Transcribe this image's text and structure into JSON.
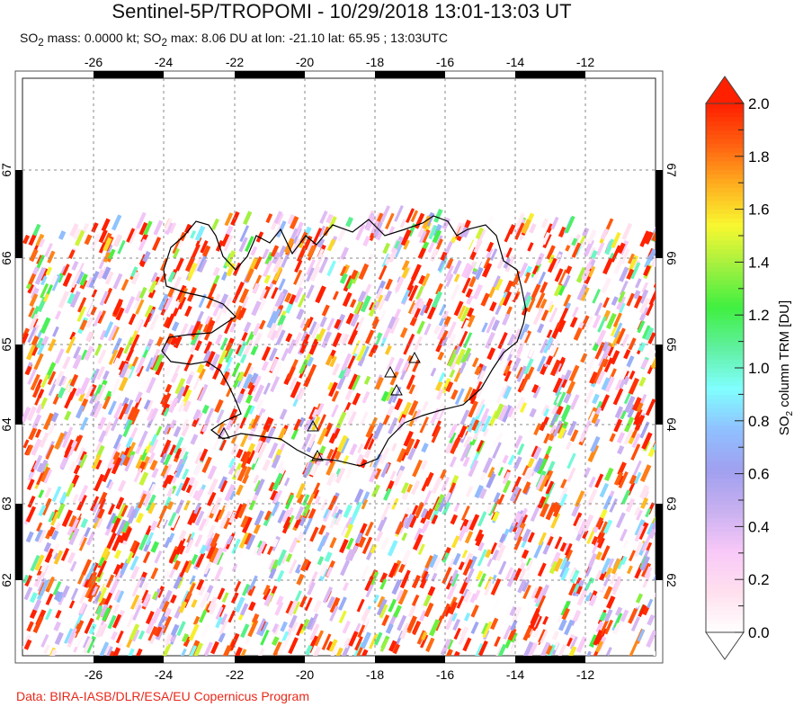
{
  "title": "Sentinel-5P/TROPOMI - 10/29/2018 13:01-13:03 UT",
  "subtitle": {
    "mass_prefix": "SO",
    "mass_sub": "2",
    "mass_text": " mass: 0.0000 kt; SO",
    "max_sub": "2",
    "max_text": " max: 8.06 DU at lon: -21.10 lat: 65.95 ; 13:03UTC"
  },
  "map": {
    "lon_ticks": [
      "-26",
      "-24",
      "-22",
      "-20",
      "-18",
      "-16",
      "-14",
      "-12"
    ],
    "lat_ticks": [
      "67",
      "66",
      "65",
      "64",
      "63",
      "62"
    ],
    "region": "Iceland"
  },
  "colorbar": {
    "label_prefix": "SO",
    "label_sub": "2",
    "label_text": " column TRM [DU]",
    "ticks": [
      "0.0",
      "0.2",
      "0.4",
      "0.6",
      "0.8",
      "1.0",
      "1.2",
      "1.4",
      "1.6",
      "1.8",
      "2.0"
    ],
    "range": [
      0.0,
      2.0
    ],
    "colors": [
      "#ffffff",
      "#ffe0ee",
      "#f8c8f8",
      "#c8b0f0",
      "#a0a0f0",
      "#90c0ff",
      "#80ffff",
      "#60f0a0",
      "#40f040",
      "#a0f040",
      "#f8f830",
      "#ffb020",
      "#ff6010",
      "#ff2000"
    ],
    "over_color": "#ff2000",
    "under_color": "#ffffff"
  },
  "credit": "Data: BIRA-IASB/DLR/ESA/EU Copernicus Program"
}
